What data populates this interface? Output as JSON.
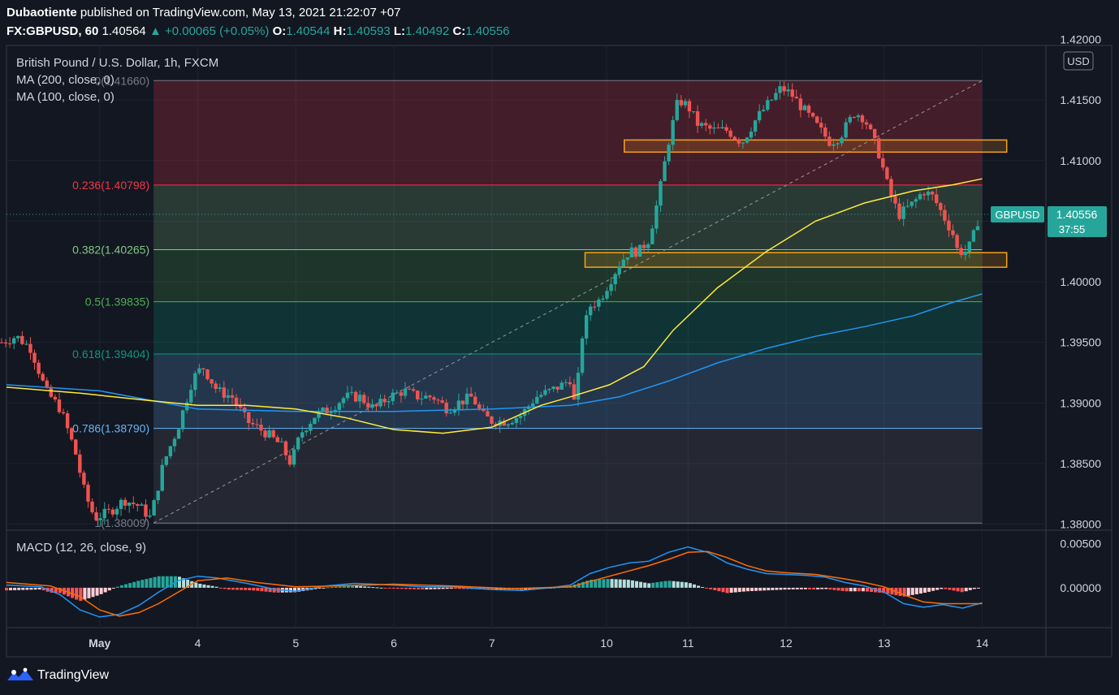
{
  "header": {
    "author": "Dubaotiente",
    "published_text": "published on TradingView.com, May 13, 2021 21:22:07 +07",
    "symbol": "FX:GBPUSD, 60",
    "last": "1.40564",
    "arrow": "▲",
    "change": "+0.00065 (+0.05%)",
    "o_label": "O:",
    "o_val": "1.40544",
    "h_label": "H:",
    "h_val": "1.40593",
    "l_label": "L:",
    "l_val": "1.40492",
    "c_label": "C:",
    "c_val": "1.40556"
  },
  "legend": {
    "title": "British Pound / U.S. Dollar, 1h, FXCM",
    "ma200": "MA (200, close, 0)",
    "ma100": "MA (100, close, 0)",
    "macd": "MACD (12, 26, close, 9)"
  },
  "currency_button": "USD",
  "price_tag": {
    "symbol": "GBPUSD",
    "price": "1.40556",
    "countdown": "37:55"
  },
  "footer": {
    "brand": "TradingView"
  },
  "colors": {
    "background": "#131722",
    "up": "#26a69a",
    "down": "#ef5350",
    "ma200": "#2196f3",
    "ma100": "#ffeb3b",
    "zone_border": "#f7a21b"
  },
  "chart_data": [
    {
      "type": "candlestick",
      "title": "British Pound / U.S. Dollar, 1h, FXCM",
      "ylim": [
        1.3795,
        1.4195
      ],
      "y_ticks": [
        1.38,
        1.385,
        1.39,
        1.395,
        1.4,
        1.405,
        1.41,
        1.415
      ],
      "y_tick_labels": [
        "1.38000",
        "1.38500",
        "1.39000",
        "1.39500",
        "1.40000",
        "1.40500",
        "1.41000",
        "1.41500"
      ],
      "y_top_label": "1.42000",
      "x_ticks": [
        {
          "label": "May",
          "pos": 2.0
        },
        {
          "label": "4",
          "pos": 3.0
        },
        {
          "label": "5",
          "pos": 4.0
        },
        {
          "label": "6",
          "pos": 5.0
        },
        {
          "label": "7",
          "pos": 6.0
        },
        {
          "label": "10",
          "pos": 7.17
        },
        {
          "label": "11",
          "pos": 8.0
        },
        {
          "label": "12",
          "pos": 9.0
        },
        {
          "label": "13",
          "pos": 10.0
        },
        {
          "label": "14",
          "pos": 11.0
        }
      ],
      "xlim": [
        1.05,
        11.65
      ],
      "price_path": [
        [
          1.0,
          1.395
        ],
        [
          1.15,
          1.3955
        ],
        [
          1.3,
          1.3945
        ],
        [
          1.45,
          1.391
        ],
        [
          1.6,
          1.3895
        ],
        [
          1.75,
          1.386
        ],
        [
          1.85,
          1.3825
        ],
        [
          1.95,
          1.3805
        ],
        [
          2.1,
          1.381
        ],
        [
          2.25,
          1.382
        ],
        [
          2.4,
          1.3815
        ],
        [
          2.52,
          1.3805
        ],
        [
          2.65,
          1.385
        ],
        [
          2.8,
          1.388
        ],
        [
          2.95,
          1.392
        ],
        [
          3.05,
          1.393
        ],
        [
          3.2,
          1.391
        ],
        [
          3.35,
          1.3905
        ],
        [
          3.5,
          1.3885
        ],
        [
          3.7,
          1.3875
        ],
        [
          3.85,
          1.3865
        ],
        [
          3.95,
          1.385
        ],
        [
          4.05,
          1.3875
        ],
        [
          4.2,
          1.389
        ],
        [
          4.35,
          1.3895
        ],
        [
          4.5,
          1.3905
        ],
        [
          4.65,
          1.3905
        ],
        [
          4.8,
          1.3895
        ],
        [
          4.95,
          1.3905
        ],
        [
          5.1,
          1.391
        ],
        [
          5.25,
          1.3905
        ],
        [
          5.4,
          1.3905
        ],
        [
          5.55,
          1.3895
        ],
        [
          5.65,
          1.39
        ],
        [
          5.8,
          1.3905
        ],
        [
          5.9,
          1.389
        ],
        [
          6.0,
          1.3885
        ],
        [
          6.15,
          1.3885
        ],
        [
          6.3,
          1.389
        ],
        [
          6.45,
          1.3905
        ],
        [
          6.6,
          1.391
        ],
        [
          6.72,
          1.3915
        ],
        [
          6.8,
          1.392
        ],
        [
          6.85,
          1.3895
        ],
        [
          6.92,
          1.3955
        ],
        [
          7.0,
          1.398
        ],
        [
          7.1,
          1.3985
        ],
        [
          7.2,
          1.4
        ],
        [
          7.3,
          1.4015
        ],
        [
          7.4,
          1.4025
        ],
        [
          7.5,
          1.4025
        ],
        [
          7.6,
          1.4035
        ],
        [
          7.7,
          1.407
        ],
        [
          7.8,
          1.4115
        ],
        [
          7.9,
          1.415
        ],
        [
          8.0,
          1.4145
        ],
        [
          8.1,
          1.413
        ],
        [
          8.25,
          1.4125
        ],
        [
          8.4,
          1.4125
        ],
        [
          8.55,
          1.4115
        ],
        [
          8.7,
          1.4135
        ],
        [
          8.85,
          1.415
        ],
        [
          8.95,
          1.416
        ],
        [
          9.05,
          1.4155
        ],
        [
          9.2,
          1.414
        ],
        [
          9.3,
          1.413
        ],
        [
          9.45,
          1.4115
        ],
        [
          9.55,
          1.412
        ],
        [
          9.7,
          1.414
        ],
        [
          9.8,
          1.4135
        ],
        [
          9.85,
          1.4125
        ],
        [
          9.95,
          1.4105
        ],
        [
          10.0,
          1.409
        ],
        [
          10.05,
          1.4075
        ],
        [
          10.15,
          1.4055
        ],
        [
          10.3,
          1.4065
        ],
        [
          10.4,
          1.4075
        ],
        [
          10.5,
          1.407
        ],
        [
          10.6,
          1.4055
        ],
        [
          10.7,
          1.404
        ],
        [
          10.75,
          1.4025
        ],
        [
          10.85,
          1.4025
        ],
        [
          10.92,
          1.404
        ],
        [
          10.97,
          1.4055
        ]
      ],
      "series": [
        {
          "name": "MA (200, close, 0)",
          "points": [
            [
              1.05,
              1.3915
            ],
            [
              2.0,
              1.391
            ],
            [
              3.0,
              1.3895
            ],
            [
              4.0,
              1.3893
            ],
            [
              5.0,
              1.3893
            ],
            [
              6.0,
              1.3895
            ],
            [
              6.8,
              1.3898
            ],
            [
              7.3,
              1.3905
            ],
            [
              7.8,
              1.3918
            ],
            [
              8.3,
              1.3933
            ],
            [
              8.8,
              1.3945
            ],
            [
              9.3,
              1.3955
            ],
            [
              9.8,
              1.3963
            ],
            [
              10.3,
              1.3972
            ],
            [
              10.7,
              1.3983
            ],
            [
              11.0,
              1.399
            ]
          ]
        },
        {
          "name": "MA (100, close, 0)",
          "points": [
            [
              1.05,
              1.3913
            ],
            [
              1.8,
              1.3908
            ],
            [
              2.5,
              1.3902
            ],
            [
              3.0,
              1.3898
            ],
            [
              3.5,
              1.3898
            ],
            [
              4.0,
              1.3895
            ],
            [
              4.5,
              1.3888
            ],
            [
              5.0,
              1.3878
            ],
            [
              5.5,
              1.3875
            ],
            [
              6.0,
              1.388
            ],
            [
              6.5,
              1.3898
            ],
            [
              6.8,
              1.3905
            ],
            [
              7.2,
              1.3915
            ],
            [
              7.55,
              1.393
            ],
            [
              7.85,
              1.396
            ],
            [
              8.3,
              1.3995
            ],
            [
              8.8,
              1.4025
            ],
            [
              9.3,
              1.405
            ],
            [
              9.8,
              1.4065
            ],
            [
              10.3,
              1.4075
            ],
            [
              10.7,
              1.408
            ],
            [
              11.0,
              1.4085
            ]
          ]
        }
      ],
      "fibonacci": {
        "from": [
          2.55,
          1.38009
        ],
        "to": [
          11.0,
          1.4166
        ],
        "levels": [
          {
            "ratio": "0",
            "price": 1.4166,
            "label": "0(1.41660)",
            "color": "#787b86"
          },
          {
            "ratio": "0.236",
            "price": 1.40798,
            "label": "0.236(1.40798)",
            "color": "#f23645"
          },
          {
            "ratio": "0.382",
            "price": 1.40265,
            "label": "0.382(1.40265)",
            "color": "#81c784"
          },
          {
            "ratio": "0.5",
            "price": 1.39835,
            "label": "0.5(1.39835)",
            "color": "#4caf50"
          },
          {
            "ratio": "0.618",
            "price": 1.39404,
            "label": "0.618(1.39404)",
            "color": "#089981"
          },
          {
            "ratio": "0.786",
            "price": 1.3879,
            "label": "0.786(1.38790)",
            "color": "#64b5f6"
          },
          {
            "ratio": "1",
            "price": 1.38009,
            "label": "1(1.38009)",
            "color": "#787b86"
          }
        ]
      },
      "zones": [
        {
          "x": [
            7.35,
            11.25
          ],
          "price": [
            1.4107,
            1.4117
          ]
        },
        {
          "x": [
            6.95,
            11.25
          ],
          "price": [
            1.4012,
            1.4024
          ]
        }
      ],
      "last_price": 1.40556
    },
    {
      "type": "macd",
      "title": "MACD (12, 26, close, 9)",
      "ylim": [
        -0.0045,
        0.0065
      ],
      "y_ticks": [
        0.0,
        0.005
      ],
      "y_tick_labels": [
        "0.00000",
        "0.00500"
      ],
      "macd_line": [
        [
          1.05,
          0.0003
        ],
        [
          1.4,
          0.0001
        ],
        [
          1.6,
          -0.0008
        ],
        [
          1.8,
          -0.0025
        ],
        [
          2.0,
          -0.0033
        ],
        [
          2.2,
          -0.003
        ],
        [
          2.4,
          -0.002
        ],
        [
          2.6,
          -0.0005
        ],
        [
          2.8,
          0.0008
        ],
        [
          3.0,
          0.0013
        ],
        [
          3.2,
          0.0011
        ],
        [
          3.5,
          0.0005
        ],
        [
          3.8,
          -0.0002
        ],
        [
          4.0,
          -0.0004
        ],
        [
          4.3,
          0.0002
        ],
        [
          4.6,
          0.0005
        ],
        [
          5.0,
          0.0003
        ],
        [
          5.3,
          0.0001
        ],
        [
          5.6,
          0.0001
        ],
        [
          6.0,
          -0.0002
        ],
        [
          6.3,
          -0.0003
        ],
        [
          6.6,
          0.0
        ],
        [
          6.8,
          0.0003
        ],
        [
          7.0,
          0.0016
        ],
        [
          7.2,
          0.0023
        ],
        [
          7.4,
          0.0028
        ],
        [
          7.6,
          0.003
        ],
        [
          7.8,
          0.004
        ],
        [
          8.0,
          0.0046
        ],
        [
          8.2,
          0.004
        ],
        [
          8.4,
          0.0028
        ],
        [
          8.6,
          0.0021
        ],
        [
          8.8,
          0.0016
        ],
        [
          9.0,
          0.0015
        ],
        [
          9.2,
          0.0014
        ],
        [
          9.4,
          0.0012
        ],
        [
          9.6,
          0.0006
        ],
        [
          9.8,
          0.0002
        ],
        [
          10.0,
          -0.0005
        ],
        [
          10.2,
          -0.0018
        ],
        [
          10.4,
          -0.0022
        ],
        [
          10.6,
          -0.0019
        ],
        [
          10.8,
          -0.0023
        ],
        [
          11.0,
          -0.0017
        ]
      ],
      "signal_line": [
        [
          1.05,
          0.0006
        ],
        [
          1.5,
          0.0002
        ],
        [
          1.8,
          -0.001
        ],
        [
          2.0,
          -0.0025
        ],
        [
          2.2,
          -0.0032
        ],
        [
          2.4,
          -0.0028
        ],
        [
          2.6,
          -0.0018
        ],
        [
          2.8,
          -0.0005
        ],
        [
          3.0,
          0.0008
        ],
        [
          3.3,
          0.0011
        ],
        [
          3.6,
          0.0006
        ],
        [
          4.0,
          0.0001
        ],
        [
          4.4,
          0.0002
        ],
        [
          5.0,
          0.0004
        ],
        [
          5.6,
          0.0002
        ],
        [
          6.2,
          -0.0001
        ],
        [
          6.8,
          0.0001
        ],
        [
          7.2,
          0.0013
        ],
        [
          7.6,
          0.0025
        ],
        [
          7.8,
          0.0032
        ],
        [
          8.0,
          0.004
        ],
        [
          8.2,
          0.0041
        ],
        [
          8.4,
          0.0034
        ],
        [
          8.6,
          0.0025
        ],
        [
          8.8,
          0.0019
        ],
        [
          9.0,
          0.0017
        ],
        [
          9.3,
          0.0015
        ],
        [
          9.6,
          0.001
        ],
        [
          9.8,
          0.0006
        ],
        [
          10.0,
          0.0001
        ],
        [
          10.2,
          -0.0008
        ],
        [
          10.4,
          -0.0016
        ],
        [
          10.6,
          -0.0018
        ],
        [
          10.8,
          -0.0018
        ],
        [
          11.0,
          -0.0018
        ]
      ]
    }
  ]
}
